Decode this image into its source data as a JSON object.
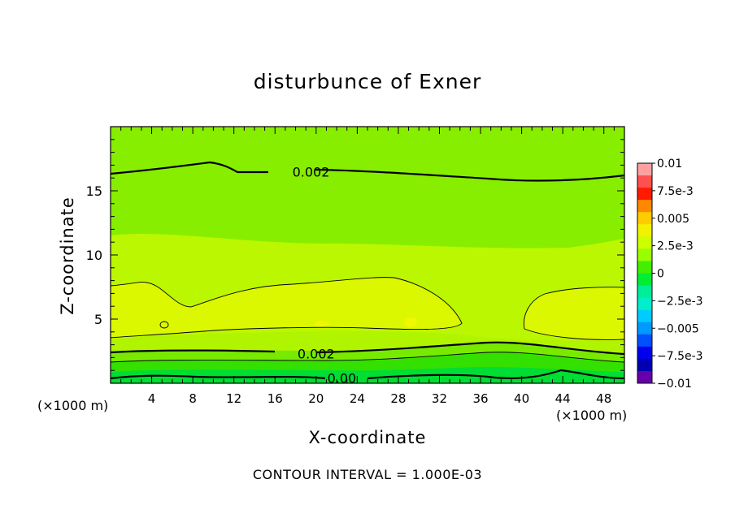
{
  "chart_data": {
    "type": "heatmap",
    "title": "disturbunce of Exner",
    "xlabel": "X-coordinate",
    "ylabel": "Z-coordinate",
    "x_unit": "(×1000 m)",
    "x_tick_labels": [
      "4",
      "8",
      "12",
      "16",
      "20",
      "24",
      "28",
      "32",
      "36",
      "40",
      "44",
      "48"
    ],
    "x_ticks": [
      4,
      8,
      12,
      16,
      20,
      24,
      28,
      32,
      36,
      40,
      44,
      48
    ],
    "y_tick_labels": [
      "5",
      "10",
      "15"
    ],
    "y_ticks": [
      5,
      10,
      15
    ],
    "xlim": [
      0,
      50
    ],
    "ylim": [
      0,
      20
    ],
    "contour_labels": [
      {
        "text": "0.002",
        "x": 19.5,
        "z": 16.5
      },
      {
        "text": "0.002",
        "x": 20.0,
        "z": 2.3
      },
      {
        "text": "0.00",
        "x": 22.5,
        "z": 0.4
      }
    ],
    "colorbar": {
      "labels": [
        "0.01",
        "7.5e-3",
        "0.005",
        "2.5e-3",
        "0",
        "−2.5e-3",
        "−0.005",
        "−7.5e-3",
        "−0.01"
      ],
      "colors": [
        "#ffa0a0",
        "#ff5050",
        "#ff1a00",
        "#ff8800",
        "#ffcc00",
        "#f2f200",
        "#ccff00",
        "#99ff00",
        "#44ee00",
        "#00ee33",
        "#00ee99",
        "#00eecc",
        "#00ccff",
        "#0099ff",
        "#0050ff",
        "#0000ee",
        "#0000b0",
        "#6600aa"
      ]
    },
    "note": "CONTOUR INTERVAL = 1.000E-03"
  }
}
